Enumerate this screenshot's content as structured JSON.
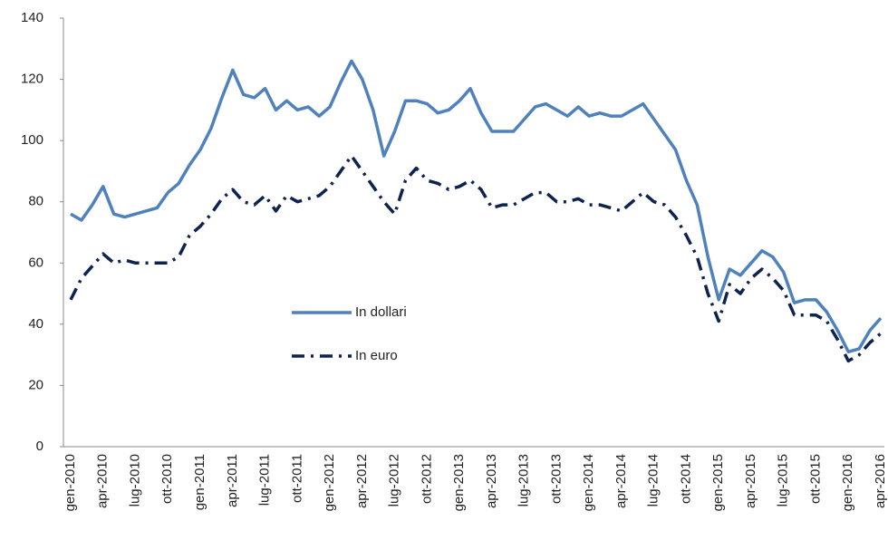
{
  "chart_data": {
    "type": "line",
    "categories": [
      "gen-2010",
      null,
      null,
      "apr-2010",
      null,
      null,
      "lug-2010",
      null,
      null,
      "ott-2010",
      null,
      null,
      "gen-2011",
      null,
      null,
      "apr-2011",
      null,
      null,
      "lug-2011",
      null,
      null,
      "ott-2011",
      null,
      null,
      "gen-2012",
      null,
      null,
      "apr-2012",
      null,
      null,
      "lug-2012",
      null,
      null,
      "ott-2012",
      null,
      null,
      "gen-2013",
      null,
      null,
      "apr-2013",
      null,
      null,
      "lug-2013",
      null,
      null,
      "ott-2013",
      null,
      null,
      "gen-2014",
      null,
      null,
      "apr-2014",
      null,
      null,
      "lug-2014",
      null,
      null,
      "ott-2014",
      null,
      null,
      "gen-2015",
      null,
      null,
      "apr-2015",
      null,
      null,
      "lug-2015",
      null,
      null,
      "ott-2015",
      null,
      null,
      "gen-2016",
      null,
      null,
      "apr-2016"
    ],
    "series": [
      {
        "name": "In dollari",
        "color": "#4f81bd",
        "dash": "solid",
        "values": [
          76,
          74,
          79,
          85,
          76,
          75,
          76,
          77,
          78,
          83,
          86,
          92,
          97,
          104,
          114,
          123,
          115,
          114,
          117,
          110,
          113,
          110,
          111,
          108,
          111,
          119,
          126,
          120,
          110,
          95,
          103,
          113,
          113,
          112,
          109,
          110,
          113,
          117,
          109,
          103,
          103,
          103,
          107,
          111,
          112,
          110,
          108,
          111,
          108,
          109,
          108,
          108,
          110,
          112,
          107,
          102,
          97,
          87,
          79,
          62,
          48,
          58,
          56,
          60,
          64,
          62,
          57,
          47,
          48,
          48,
          44,
          38,
          31,
          32,
          38,
          42
        ]
      },
      {
        "name": "In euro",
        "color": "#0f2350",
        "dash": "dashdot",
        "values": [
          48,
          55,
          59,
          63,
          60,
          61,
          60,
          60,
          60,
          60,
          62,
          69,
          72,
          76,
          81,
          84,
          80,
          79,
          82,
          77,
          82,
          80,
          81,
          82,
          85,
          90,
          95,
          90,
          85,
          80,
          76,
          87,
          91,
          87,
          86,
          84,
          85,
          87,
          84,
          78,
          79,
          79,
          81,
          83,
          83,
          80,
          80,
          81,
          79,
          79,
          78,
          77,
          80,
          83,
          80,
          79,
          75,
          69,
          62,
          50,
          41,
          53,
          50,
          55,
          58,
          55,
          51,
          43,
          43,
          43,
          41,
          35,
          28,
          30,
          34,
          37
        ]
      }
    ],
    "ylim": [
      0,
      140
    ],
    "yticks": [
      0,
      20,
      40,
      60,
      80,
      100,
      120,
      140
    ],
    "grid": false,
    "legend": "center"
  }
}
